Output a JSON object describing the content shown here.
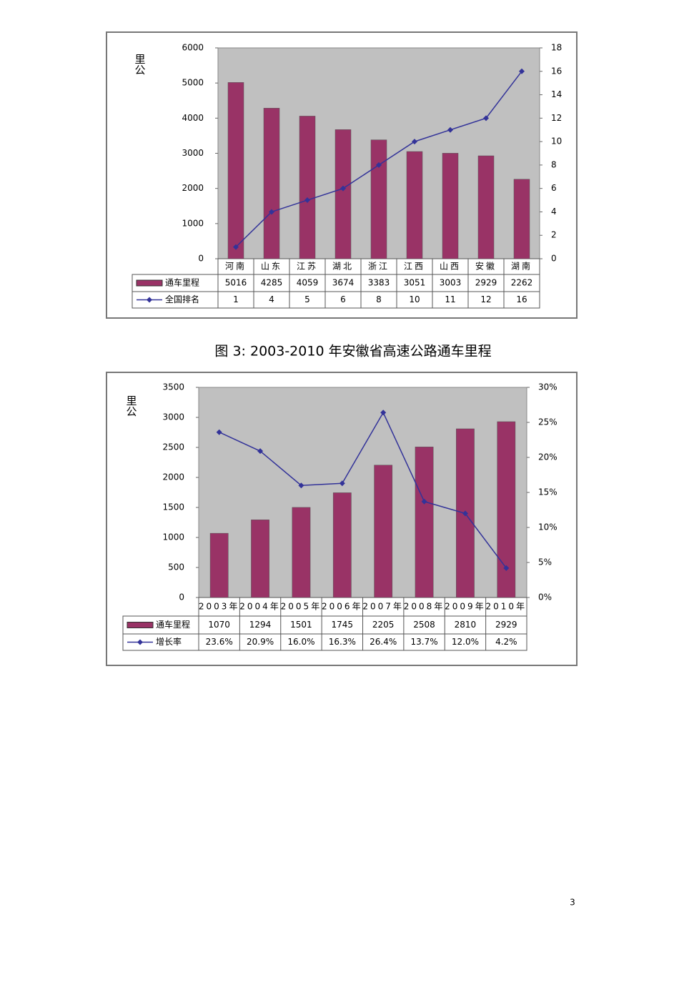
{
  "chart_data": [
    {
      "type": "bar",
      "y_label": "里公",
      "categories": [
        "河南",
        "山东",
        "江苏",
        "湖北",
        "浙江",
        "江西",
        "山西",
        "安徽",
        "湖南"
      ],
      "series": [
        {
          "name": "通车里程",
          "type": "bar",
          "color": "#993366",
          "values": [
            5016,
            4285,
            4059,
            3674,
            3383,
            3051,
            3003,
            2929,
            2262
          ]
        },
        {
          "name": "全国排名",
          "type": "line",
          "axis": "y2",
          "color": "#333399",
          "values": [
            1,
            4,
            5,
            6,
            8,
            10,
            11,
            12,
            16
          ]
        }
      ],
      "ylim": [
        0,
        6000
      ],
      "yticks": [
        0,
        1000,
        2000,
        3000,
        4000,
        5000,
        6000
      ],
      "y2lim": [
        0,
        18
      ],
      "y2ticks": [
        0,
        2,
        4,
        6,
        8,
        10,
        12,
        14,
        16,
        18
      ],
      "grid": false
    },
    {
      "type": "bar",
      "title": "图 3:  2003-2010 年安徽省高速公路通车里程",
      "y_label": "里公",
      "categories": [
        "2003年",
        "2004年",
        "2005年",
        "2006年",
        "2007年",
        "2008年",
        "2009年",
        "2010年"
      ],
      "series": [
        {
          "name": "通车里程",
          "type": "bar",
          "color": "#993366",
          "values": [
            1070,
            1294,
            1501,
            1745,
            2205,
            2508,
            2810,
            2929
          ]
        },
        {
          "name": "增长率",
          "type": "line",
          "axis": "y2",
          "color": "#333399",
          "values": [
            23.6,
            20.9,
            16.0,
            16.3,
            26.4,
            13.7,
            12.0,
            4.2
          ],
          "value_labels": [
            "23.6%",
            "20.9%",
            "16.0%",
            "16.3%",
            "26.4%",
            "13.7%",
            "12.0%",
            "4.2%"
          ]
        }
      ],
      "ylim": [
        0,
        3500
      ],
      "yticks": [
        0,
        500,
        1000,
        1500,
        2000,
        2500,
        3000,
        3500
      ],
      "y2lim": [
        0,
        30
      ],
      "y2ticks": [
        {
          "value": 0,
          "label": "0%"
        },
        {
          "value": 5,
          "label": "5%"
        },
        {
          "value": 10,
          "label": "10%"
        },
        {
          "value": 15,
          "label": "15%"
        },
        {
          "value": 20,
          "label": "20%"
        },
        {
          "value": 25,
          "label": "25%"
        },
        {
          "value": 30,
          "label": "30%"
        }
      ],
      "grid": false
    }
  ],
  "page_number": "3"
}
